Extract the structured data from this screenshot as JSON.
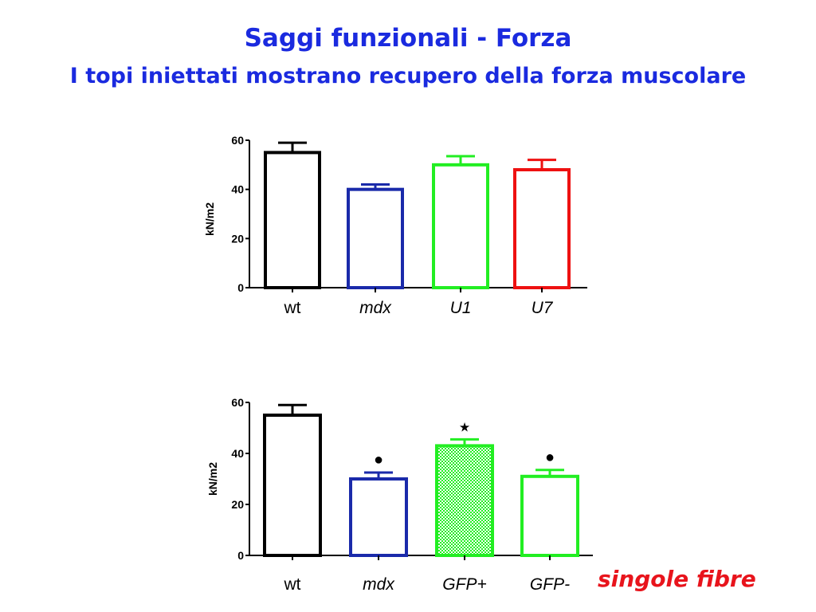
{
  "slide": {
    "title": "Saggi funzionali - Forza",
    "subtitle": "I topi iniettati mostrano recupero della forza muscolare",
    "fibre_note": "singole fibre"
  },
  "colors": {
    "title": "#1a2adf",
    "note": "#e8141c"
  },
  "chart_data": [
    {
      "type": "bar",
      "categories": [
        "wt",
        "mdx",
        "U1",
        "U7"
      ],
      "category_styles": [
        "normal",
        "italic",
        "italic",
        "italic"
      ],
      "values": [
        55,
        40,
        50,
        48
      ],
      "errors": [
        4,
        2,
        3.5,
        4
      ],
      "bar_colors": [
        "#000000",
        "#1a2aaa",
        "#22ee22",
        "#ee1111"
      ],
      "ylabel": "kN/m2",
      "ylim": [
        0,
        60
      ],
      "yticks": [
        0,
        20,
        40,
        60
      ],
      "markers": [
        "",
        "",
        "",
        ""
      ],
      "hatched": [
        false,
        false,
        false,
        false
      ]
    },
    {
      "type": "bar",
      "categories": [
        "wt",
        "mdx",
        "GFP+",
        "GFP-"
      ],
      "category_styles": [
        "normal",
        "italic",
        "italic",
        "italic"
      ],
      "values": [
        55,
        30,
        43,
        31
      ],
      "errors": [
        4,
        2.5,
        2.5,
        2.5
      ],
      "bar_colors": [
        "#000000",
        "#1a2aaa",
        "#22ee22",
        "#22ee22"
      ],
      "ylabel": "kN/m2",
      "ylim": [
        0,
        60
      ],
      "yticks": [
        0,
        20,
        40,
        60
      ],
      "markers": [
        "",
        "●",
        "★",
        "●"
      ],
      "hatched": [
        false,
        false,
        true,
        false
      ]
    }
  ]
}
